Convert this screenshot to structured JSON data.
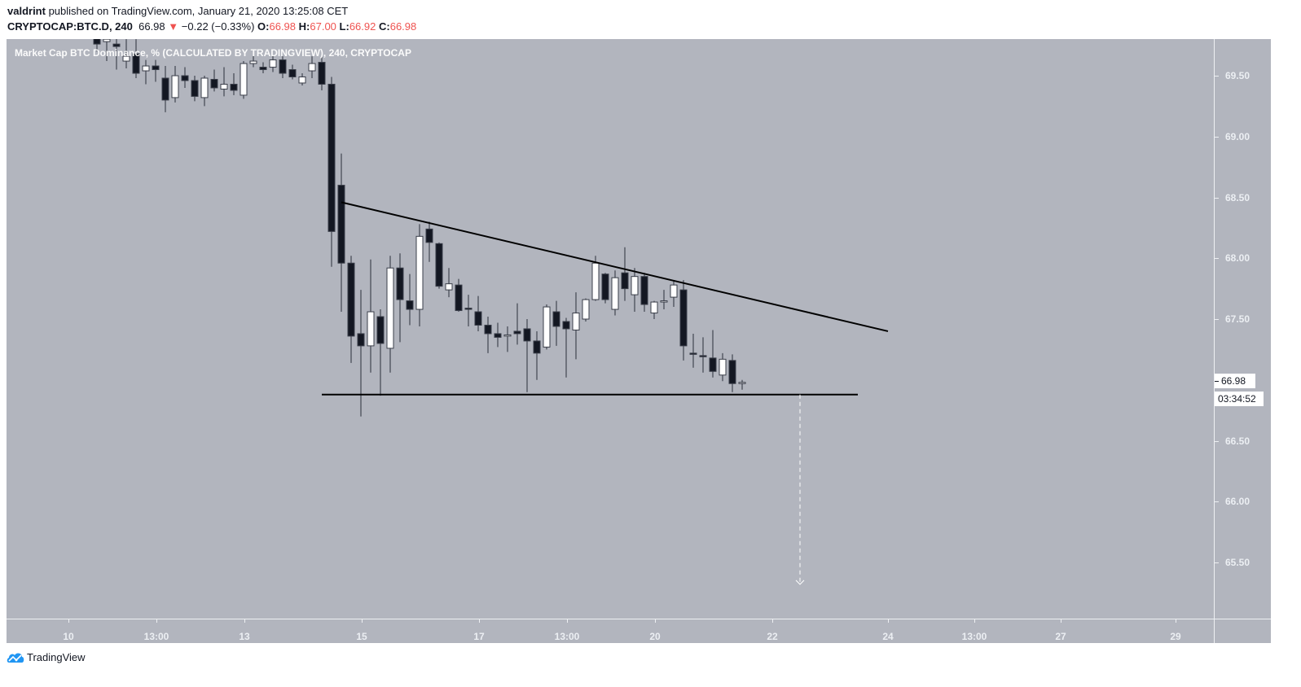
{
  "header": {
    "author": "valdrint",
    "published_text": " published on TradingView.com, January 21, 2020 13:25:08 CET",
    "symbol": "CRYPTOCAP:BTC.D, 240",
    "last": "66.98",
    "change_arrow": "▼",
    "change": "−0.22 (−0.33%)",
    "o_label": "O:",
    "o_value": "66.98",
    "h_label": "H:",
    "h_value": "67.00",
    "l_label": "L:",
    "l_value": "66.92",
    "c_label": "C:",
    "c_value": "66.98"
  },
  "chart_title": "Market Cap BTC Dominance, % (CALCULATED BY TRADINGVIEW), 240, CRYPTOCAP",
  "price_tag": "66.98",
  "countdown_tag": "03:34:52",
  "footer": {
    "brand": "TradingView"
  },
  "colors": {
    "background": "#b2b5be",
    "bull_body": "#ffffff",
    "bear_body": "#131722",
    "wick": "#131722",
    "trendline": "#000000",
    "projection": "#ffffff",
    "axis_text": "#eceff3",
    "down_value": "#ef5350"
  },
  "chart_data": {
    "type": "candlestick",
    "title": "Market Cap BTC Dominance, % (CALCULATED BY TRADINGVIEW), 240, CRYPTOCAP",
    "symbol": "CRYPTOCAP:BTC.D",
    "interval": "240",
    "xlabel": "",
    "ylabel": "",
    "ylim": [
      65.1,
      69.8
    ],
    "grid": false,
    "y_ticks": [
      "69.50",
      "69.00",
      "68.50",
      "68.00",
      "67.50",
      "66.50",
      "66.00",
      "65.50"
    ],
    "y_tick_values": [
      69.5,
      69.0,
      68.5,
      68.0,
      67.5,
      66.5,
      66.0,
      65.5
    ],
    "x_ticks": [
      {
        "label": "10",
        "x": 84
      },
      {
        "label": "13:00",
        "x": 192
      },
      {
        "label": "13",
        "x": 300
      },
      {
        "label": "15",
        "x": 444
      },
      {
        "label": "17",
        "x": 588
      },
      {
        "label": "13:00",
        "x": 696
      },
      {
        "label": "20",
        "x": 804
      },
      {
        "label": "22",
        "x": 948
      },
      {
        "label": "24",
        "x": 1090
      },
      {
        "label": "13:00",
        "x": 1196
      },
      {
        "label": "27",
        "x": 1302
      },
      {
        "label": "29",
        "x": 1443
      }
    ],
    "candles": [
      {
        "x": 119,
        "o": 69.9,
        "h": 70.0,
        "l": 69.7,
        "c": 69.76
      },
      {
        "x": 131,
        "o": 69.78,
        "h": 69.85,
        "l": 69.62,
        "c": 69.8
      },
      {
        "x": 143,
        "o": 69.76,
        "h": 69.88,
        "l": 69.55,
        "c": 69.74
      },
      {
        "x": 155,
        "o": 69.62,
        "h": 69.8,
        "l": 69.56,
        "c": 69.66
      },
      {
        "x": 167,
        "o": 69.68,
        "h": 69.8,
        "l": 69.48,
        "c": 69.52
      },
      {
        "x": 179,
        "o": 69.54,
        "h": 69.63,
        "l": 69.43,
        "c": 69.58
      },
      {
        "x": 191,
        "o": 69.58,
        "h": 69.63,
        "l": 69.45,
        "c": 69.55
      },
      {
        "x": 203,
        "o": 69.48,
        "h": 69.58,
        "l": 69.2,
        "c": 69.3
      },
      {
        "x": 215,
        "o": 69.32,
        "h": 69.58,
        "l": 69.28,
        "c": 69.5
      },
      {
        "x": 227,
        "o": 69.5,
        "h": 69.57,
        "l": 69.4,
        "c": 69.46
      },
      {
        "x": 239,
        "o": 69.46,
        "h": 69.5,
        "l": 69.29,
        "c": 69.33
      },
      {
        "x": 251,
        "o": 69.32,
        "h": 69.5,
        "l": 69.25,
        "c": 69.48
      },
      {
        "x": 263,
        "o": 69.47,
        "h": 69.55,
        "l": 69.37,
        "c": 69.4
      },
      {
        "x": 275,
        "o": 69.39,
        "h": 69.57,
        "l": 69.33,
        "c": 69.43
      },
      {
        "x": 287,
        "o": 69.43,
        "h": 69.52,
        "l": 69.34,
        "c": 69.38
      },
      {
        "x": 299,
        "o": 69.34,
        "h": 69.62,
        "l": 69.31,
        "c": 69.6
      },
      {
        "x": 311,
        "o": 69.6,
        "h": 69.67,
        "l": 69.57,
        "c": 69.62
      },
      {
        "x": 323,
        "o": 69.57,
        "h": 69.61,
        "l": 69.52,
        "c": 69.55
      },
      {
        "x": 335,
        "o": 69.57,
        "h": 69.67,
        "l": 69.53,
        "c": 69.63
      },
      {
        "x": 347,
        "o": 69.63,
        "h": 69.66,
        "l": 69.48,
        "c": 69.52
      },
      {
        "x": 359,
        "o": 69.55,
        "h": 69.59,
        "l": 69.47,
        "c": 69.49
      },
      {
        "x": 371,
        "o": 69.44,
        "h": 69.52,
        "l": 69.42,
        "c": 69.49
      },
      {
        "x": 383,
        "o": 69.54,
        "h": 69.66,
        "l": 69.48,
        "c": 69.6
      },
      {
        "x": 395,
        "o": 69.61,
        "h": 69.66,
        "l": 69.38,
        "c": 69.43
      },
      {
        "x": 407,
        "o": 69.43,
        "h": 69.49,
        "l": 67.93,
        "c": 68.22
      },
      {
        "x": 419,
        "o": 68.6,
        "h": 68.86,
        "l": 67.56,
        "c": 67.96
      },
      {
        "x": 431,
        "o": 67.96,
        "h": 68.02,
        "l": 67.14,
        "c": 67.36
      },
      {
        "x": 443,
        "o": 67.38,
        "h": 67.74,
        "l": 66.7,
        "c": 67.28
      },
      {
        "x": 455,
        "o": 67.28,
        "h": 67.99,
        "l": 67.06,
        "c": 67.56
      },
      {
        "x": 467,
        "o": 67.52,
        "h": 67.58,
        "l": 66.87,
        "c": 67.3
      },
      {
        "x": 479,
        "o": 67.26,
        "h": 68.02,
        "l": 67.06,
        "c": 67.92
      },
      {
        "x": 491,
        "o": 67.92,
        "h": 68.04,
        "l": 67.31,
        "c": 67.66
      },
      {
        "x": 503,
        "o": 67.65,
        "h": 67.87,
        "l": 67.45,
        "c": 67.58
      },
      {
        "x": 515,
        "o": 67.58,
        "h": 68.28,
        "l": 67.44,
        "c": 68.18
      },
      {
        "x": 527,
        "o": 68.24,
        "h": 68.3,
        "l": 67.97,
        "c": 68.13
      },
      {
        "x": 539,
        "o": 68.12,
        "h": 68.13,
        "l": 67.75,
        "c": 67.77
      },
      {
        "x": 551,
        "o": 67.74,
        "h": 67.92,
        "l": 67.68,
        "c": 67.79
      },
      {
        "x": 563,
        "o": 67.78,
        "h": 67.83,
        "l": 67.56,
        "c": 67.57
      },
      {
        "x": 575,
        "o": 67.59,
        "h": 67.7,
        "l": 67.44,
        "c": 67.58
      },
      {
        "x": 587,
        "o": 67.56,
        "h": 67.69,
        "l": 67.4,
        "c": 67.45
      },
      {
        "x": 599,
        "o": 67.45,
        "h": 67.52,
        "l": 67.22,
        "c": 67.38
      },
      {
        "x": 611,
        "o": 67.38,
        "h": 67.47,
        "l": 67.27,
        "c": 67.35
      },
      {
        "x": 623,
        "o": 67.37,
        "h": 67.44,
        "l": 67.23,
        "c": 67.37
      },
      {
        "x": 635,
        "o": 67.4,
        "h": 67.63,
        "l": 67.29,
        "c": 67.38
      },
      {
        "x": 647,
        "o": 67.42,
        "h": 67.5,
        "l": 66.9,
        "c": 67.32
      },
      {
        "x": 659,
        "o": 67.32,
        "h": 67.4,
        "l": 67.0,
        "c": 67.22
      },
      {
        "x": 671,
        "o": 67.27,
        "h": 67.62,
        "l": 67.25,
        "c": 67.6
      },
      {
        "x": 683,
        "o": 67.56,
        "h": 67.65,
        "l": 67.28,
        "c": 67.44
      },
      {
        "x": 695,
        "o": 67.48,
        "h": 67.51,
        "l": 67.02,
        "c": 67.42
      },
      {
        "x": 707,
        "o": 67.41,
        "h": 67.72,
        "l": 67.17,
        "c": 67.55
      },
      {
        "x": 719,
        "o": 67.5,
        "h": 67.67,
        "l": 67.48,
        "c": 67.66
      },
      {
        "x": 731,
        "o": 67.66,
        "h": 68.02,
        "l": 67.65,
        "c": 67.96
      },
      {
        "x": 743,
        "o": 67.87,
        "h": 67.88,
        "l": 67.63,
        "c": 67.66
      },
      {
        "x": 755,
        "o": 67.58,
        "h": 67.9,
        "l": 67.53,
        "c": 67.84
      },
      {
        "x": 767,
        "o": 67.88,
        "h": 68.09,
        "l": 67.65,
        "c": 67.75
      },
      {
        "x": 779,
        "o": 67.7,
        "h": 67.92,
        "l": 67.56,
        "c": 67.85
      },
      {
        "x": 791,
        "o": 67.85,
        "h": 67.88,
        "l": 67.56,
        "c": 67.62
      },
      {
        "x": 803,
        "o": 67.55,
        "h": 67.65,
        "l": 67.5,
        "c": 67.64
      },
      {
        "x": 815,
        "o": 67.64,
        "h": 67.74,
        "l": 67.58,
        "c": 67.65
      },
      {
        "x": 827,
        "o": 67.68,
        "h": 67.82,
        "l": 67.6,
        "c": 67.78
      },
      {
        "x": 839,
        "o": 67.74,
        "h": 67.82,
        "l": 67.16,
        "c": 67.28
      },
      {
        "x": 851,
        "o": 67.22,
        "h": 67.38,
        "l": 67.1,
        "c": 67.21
      },
      {
        "x": 863,
        "o": 67.2,
        "h": 67.35,
        "l": 67.06,
        "c": 67.19
      },
      {
        "x": 875,
        "o": 67.18,
        "h": 67.41,
        "l": 67.02,
        "c": 67.07
      },
      {
        "x": 887,
        "o": 67.04,
        "h": 67.22,
        "l": 66.99,
        "c": 67.17
      },
      {
        "x": 899,
        "o": 67.16,
        "h": 67.21,
        "l": 66.9,
        "c": 66.97
      },
      {
        "x": 911,
        "o": 66.98,
        "h": 67.0,
        "l": 66.92,
        "c": 66.98
      }
    ],
    "annotations": [
      {
        "type": "trendline",
        "name": "descending-resistance",
        "from": {
          "x": 419,
          "price": 68.46
        },
        "to": {
          "x": 1090,
          "price": 67.4
        }
      },
      {
        "type": "trendline",
        "name": "horizontal-support",
        "from": {
          "x": 395,
          "price": 66.88
        },
        "to": {
          "x": 1053,
          "price": 66.88
        }
      },
      {
        "type": "projection-arrow",
        "name": "target-projection",
        "from": {
          "x": 982,
          "price": 66.88
        },
        "to": {
          "x": 982,
          "price": 65.32
        }
      }
    ],
    "last_price": 66.98,
    "countdown": "03:34:52"
  }
}
